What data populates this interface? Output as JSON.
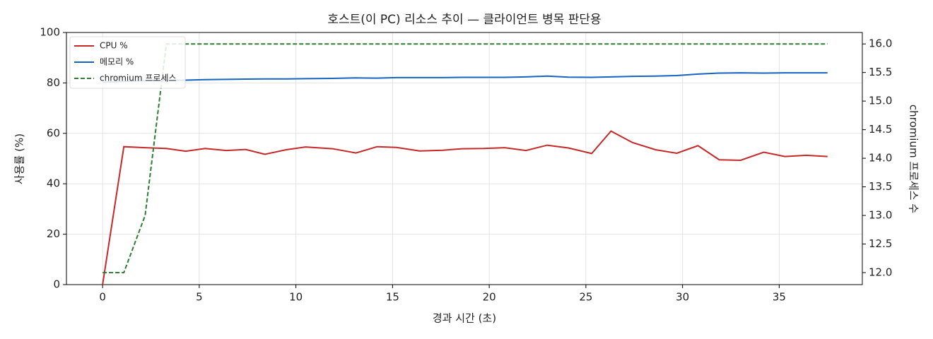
{
  "chart_data": {
    "type": "line",
    "title": "호스트(이 PC) 리소스 추이 — 클라이언트 병목 판단용",
    "x_label": "경과 시간 (초)",
    "y_label": "사용률 (%)",
    "y2_label": "chromium 프로세스 수",
    "x": [
      0,
      1.1,
      2.2,
      3.3,
      4.3,
      5.3,
      6.4,
      7.4,
      8.4,
      9.5,
      10.5,
      11.9,
      13.1,
      14.2,
      15.2,
      16.4,
      17.6,
      18.6,
      19.7,
      20.8,
      21.9,
      23.0,
      24.1,
      25.3,
      26.3,
      27.4,
      28.6,
      29.7,
      30.8,
      31.9,
      33.0,
      34.2,
      35.3,
      36.4,
      37.5
    ],
    "series": [
      {
        "name": "CPU %",
        "color": "#c62828",
        "values": [
          0,
          54.7,
          54.3,
          54,
          52.9,
          54,
          53.2,
          53.6,
          51.7,
          53.5,
          54.6,
          53.9,
          52.2,
          54.7,
          54.4,
          53,
          53.3,
          53.9,
          54,
          54.3,
          53.2,
          55.3,
          54.2,
          52,
          60.9,
          56.4,
          53.5,
          52.1,
          55.1,
          49.5,
          49.3,
          52.5,
          50.8,
          51.3,
          50.8
        ]
      },
      {
        "name": "메모리 %",
        "color": "#1565c0",
        "values": [
          80.2,
          80.6,
          80.9,
          81.0,
          81.1,
          81.3,
          81.4,
          81.5,
          81.6,
          81.6,
          81.7,
          81.8,
          82.0,
          81.9,
          82.1,
          82.1,
          82.1,
          82.2,
          82.2,
          82.2,
          82.4,
          82.7,
          82.3,
          82.2,
          82.4,
          82.6,
          82.7,
          82.9,
          83.5,
          83.9,
          84.0,
          83.9,
          84.0,
          84.0,
          84.0
        ]
      },
      {
        "name": "chromium 프로세스",
        "color": "#2e7d32",
        "linestyle": "dashed",
        "axis": "y2",
        "values": [
          12,
          12,
          13,
          16,
          16,
          16,
          16,
          16,
          16,
          16,
          16,
          16,
          16,
          16,
          16,
          16,
          16,
          16,
          16,
          16,
          16,
          16,
          16,
          16,
          16,
          16,
          16,
          16,
          16,
          16,
          16,
          16,
          16,
          16,
          16
        ]
      }
    ],
    "xlim": [
      -1.87,
      39.3
    ],
    "xticks": [
      0,
      5,
      10,
      15,
      20,
      25,
      30,
      35
    ],
    "ylim": [
      0,
      100
    ],
    "yticks": [
      0,
      20,
      40,
      60,
      80,
      100
    ],
    "y2lim": [
      11.79,
      16.2
    ],
    "y2ticks": [
      {
        "value": 12,
        "label": "12.0"
      },
      {
        "value": 12.5,
        "label": "12.5"
      },
      {
        "value": 13,
        "label": "13.0"
      },
      {
        "value": 13.5,
        "label": "13.5"
      },
      {
        "value": 14,
        "label": "14.0"
      },
      {
        "value": 14.5,
        "label": "14.5"
      },
      {
        "value": 15,
        "label": "15.0"
      },
      {
        "value": 15.5,
        "label": "15.5"
      },
      {
        "value": 16,
        "label": "16.0"
      }
    ],
    "grid": true,
    "legend": "upper-left"
  }
}
